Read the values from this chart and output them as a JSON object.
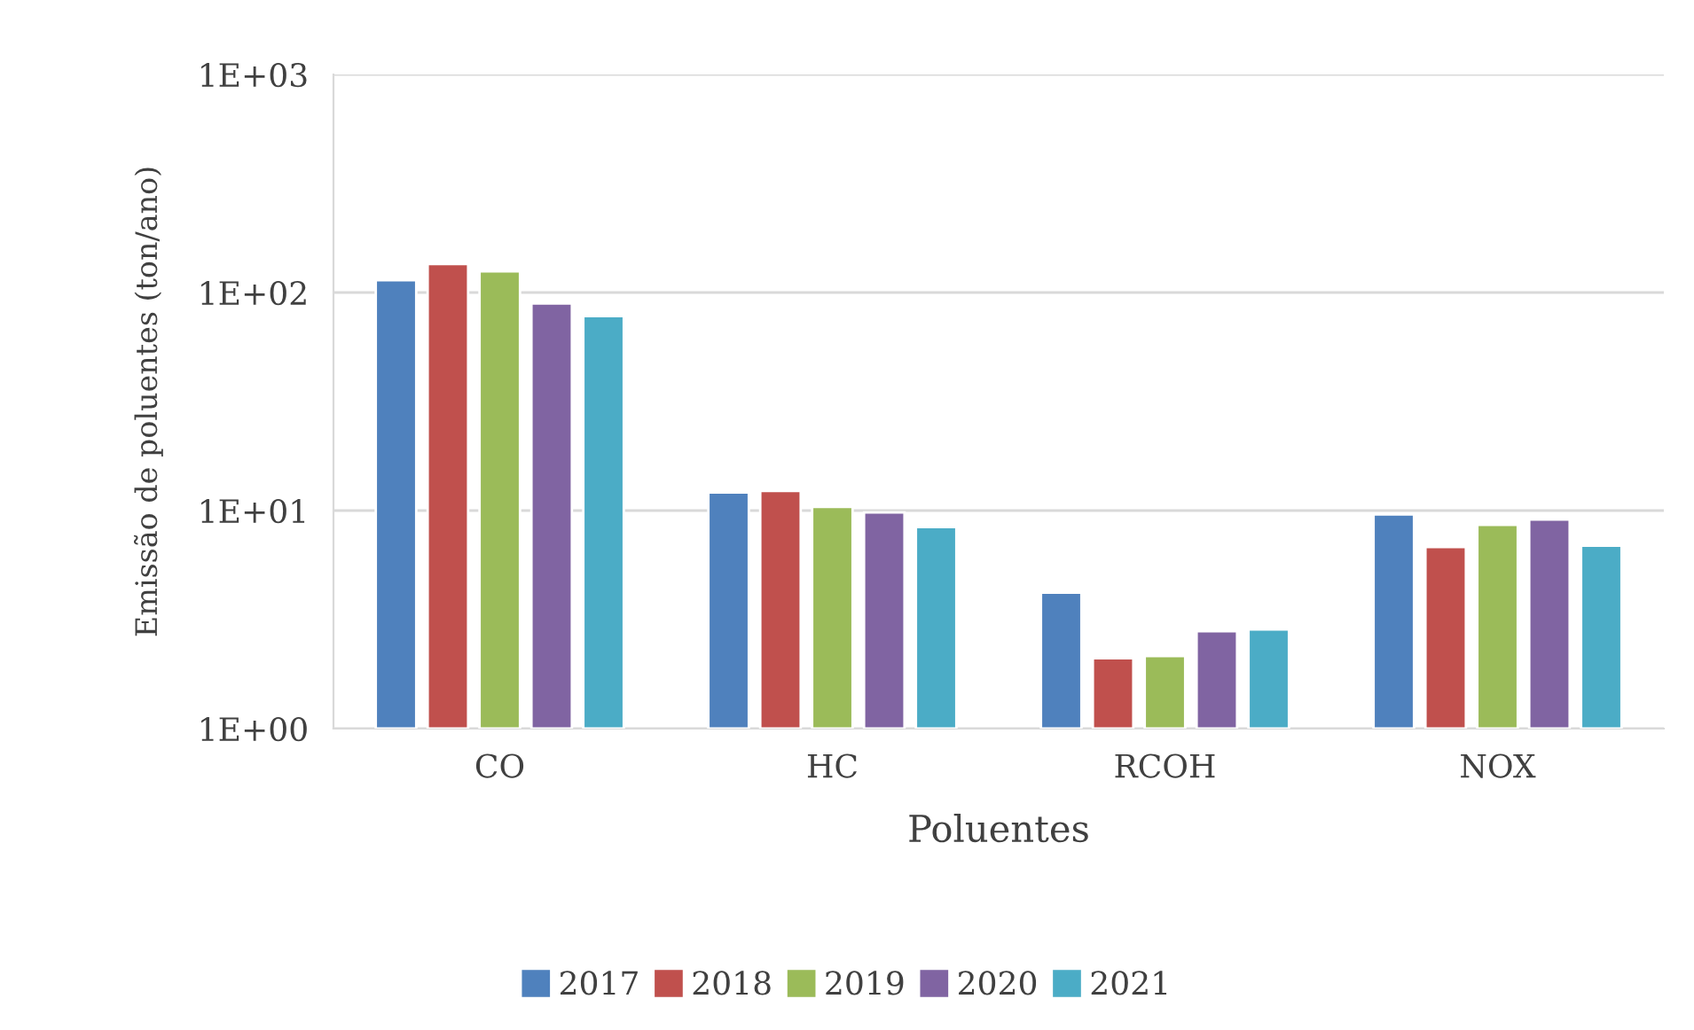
{
  "chart_data": {
    "type": "bar",
    "xlabel": "Poluentes",
    "ylabel": "Emissão de poluentes (ton/ano)",
    "categories": [
      "CO",
      "HC",
      "RCOH",
      "NOX"
    ],
    "series": [
      {
        "name": "2017",
        "color": "#4f81bd",
        "values": [
          114,
          12.1,
          4.2,
          9.6
        ]
      },
      {
        "name": "2018",
        "color": "#c0504d",
        "values": [
          135,
          12.3,
          2.1,
          6.8
        ]
      },
      {
        "name": "2019",
        "color": "#9bbb59",
        "values": [
          125,
          10.4,
          2.15,
          8.6
        ]
      },
      {
        "name": "2020",
        "color": "#8064a2",
        "values": [
          89,
          9.8,
          2.8,
          9.1
        ]
      },
      {
        "name": "2021",
        "color": "#4bacc6",
        "values": [
          78,
          8.4,
          2.85,
          6.9
        ]
      }
    ],
    "log": "y",
    "ylim": [
      1,
      1000
    ],
    "yticks": [
      {
        "value": 1,
        "label": "1E+00"
      },
      {
        "value": 10,
        "label": "1E+01"
      },
      {
        "value": 100,
        "label": "1E+02"
      },
      {
        "value": 1000,
        "label": "1E+03"
      }
    ],
    "grid": "y",
    "legend": "bottom"
  }
}
